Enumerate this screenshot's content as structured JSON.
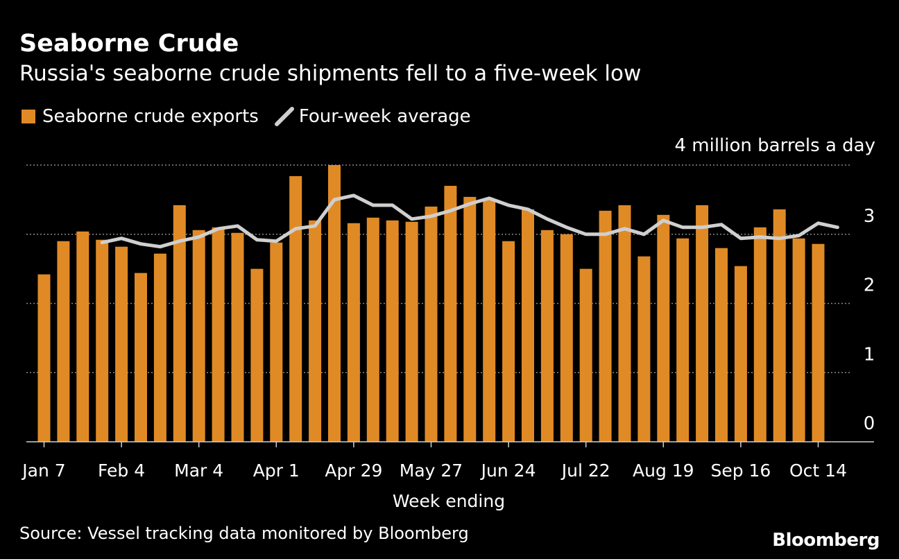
{
  "header": {
    "title": "Seaborne Crude",
    "subtitle": "Russia's seaborne crude shipments fell to a five-week low"
  },
  "legend": {
    "bars_label": "Seaborne crude exports",
    "line_label": "Four-week average"
  },
  "colors": {
    "bar": "#E08A26",
    "line": "#CFCFCF",
    "grid": "#8A8A8A",
    "background": "#000000",
    "text": "#FFFFFF"
  },
  "chart_data": {
    "type": "bar",
    "title": "Seaborne Crude",
    "subtitle": "Russia's seaborne crude shipments fell to a five-week low",
    "xlabel": "Week ending",
    "ylabel": "4 million barrels a day",
    "ylim": [
      0,
      4
    ],
    "yticks": [
      0,
      1,
      2,
      3
    ],
    "y_axis_side": "right",
    "grid": true,
    "legend_position": "top-left",
    "xtick_labels": [
      "Jan 7",
      "Feb 4",
      "Mar 4",
      "Apr 1",
      "Apr 29",
      "May 27",
      "Jun 24",
      "Jul 22",
      "Aug 19",
      "Sep 16",
      "Oct 14"
    ],
    "xtick_every": 4,
    "series": [
      {
        "name": "Seaborne crude exports",
        "type": "bar",
        "values": [
          2.42,
          2.9,
          3.04,
          2.92,
          2.82,
          2.44,
          2.72,
          3.42,
          3.06,
          3.1,
          3.02,
          2.5,
          2.88,
          3.84,
          3.2,
          4.0,
          3.16,
          3.24,
          3.2,
          3.18,
          3.4,
          3.7,
          3.54,
          3.5,
          2.9,
          3.36,
          3.06,
          3.0,
          2.5,
          3.34,
          3.42,
          2.68,
          3.28,
          2.94,
          3.42,
          2.8,
          2.54,
          3.1,
          3.36,
          2.94,
          2.86
        ]
      },
      {
        "name": "Four-week average",
        "type": "line",
        "start_index": 3,
        "values": [
          2.88,
          2.94,
          2.86,
          2.82,
          2.9,
          2.96,
          3.08,
          3.12,
          2.92,
          2.9,
          3.08,
          3.12,
          3.5,
          3.56,
          3.42,
          3.42,
          3.22,
          3.26,
          3.34,
          3.44,
          3.52,
          3.42,
          3.36,
          3.22,
          3.1,
          3.0,
          3.0,
          3.08,
          3.0,
          3.2,
          3.1,
          3.1,
          3.14,
          2.94,
          2.96,
          2.94,
          2.98,
          3.16,
          3.1
        ]
      }
    ]
  },
  "footer": {
    "source": "Source: Vessel tracking data monitored by Bloomberg",
    "brand": "Bloomberg"
  }
}
